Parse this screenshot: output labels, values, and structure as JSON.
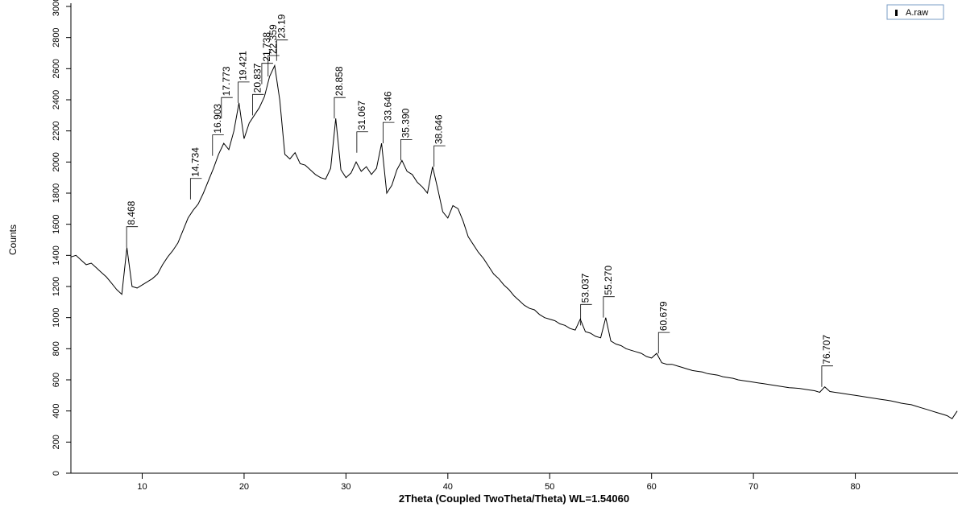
{
  "chart_data": {
    "type": "line",
    "xlabel": "2Theta (Coupled TwoTheta/Theta) WL=1.54060",
    "ylabel": "Counts",
    "legend": "top-right",
    "x": [
      3,
      3.5,
      4,
      4.5,
      5,
      5.5,
      6,
      6.5,
      7,
      7.5,
      8,
      8.5,
      9,
      9.5,
      10,
      10.5,
      11,
      11.5,
      12,
      12.5,
      13,
      13.5,
      14,
      14.5,
      15,
      15.5,
      16,
      16.5,
      17,
      17.5,
      18,
      18.5,
      19,
      19.5,
      20,
      20.5,
      21,
      21.5,
      22,
      22.5,
      23,
      23.5,
      24,
      24.5,
      25,
      25.5,
      26,
      26.5,
      27,
      27.5,
      28,
      28.5,
      29,
      29.5,
      30,
      30.5,
      31,
      31.5,
      32,
      32.5,
      33,
      33.5,
      34,
      34.5,
      35,
      35.5,
      36,
      36.5,
      37,
      37.5,
      38,
      38.5,
      39,
      39.5,
      40,
      40.5,
      41,
      41.5,
      42,
      42.5,
      43,
      43.5,
      44,
      44.5,
      45,
      45.5,
      46,
      46.5,
      47,
      47.5,
      48,
      48.5,
      49,
      49.5,
      50,
      50.5,
      51,
      51.5,
      52,
      52.5,
      53,
      53.5,
      54,
      54.5,
      55,
      55.5,
      56,
      56.5,
      57,
      57.5,
      58,
      58.5,
      59,
      59.5,
      60,
      60.5,
      61,
      61.5,
      62,
      62.5,
      63,
      63.5,
      64,
      64.5,
      65,
      65.5,
      66,
      66.5,
      67,
      67.5,
      68,
      68.5,
      69,
      69.5,
      70,
      70.5,
      71,
      71.5,
      72,
      72.5,
      73,
      73.5,
      74,
      74.5,
      75,
      75.5,
      76,
      76.5,
      77,
      77.5,
      78,
      78.5,
      79,
      79.5,
      80,
      80.5,
      81,
      81.5,
      82,
      82.5,
      83,
      83.5,
      84,
      84.5,
      85,
      85.5,
      86,
      86.5,
      87,
      87.5,
      88,
      88.5,
      89,
      89.5,
      90
    ],
    "series": [
      {
        "name": "A.raw",
        "color": "#000000",
        "values": [
          1390,
          1400,
          1370,
          1340,
          1350,
          1320,
          1290,
          1260,
          1220,
          1180,
          1150,
          1450,
          1200,
          1190,
          1210,
          1230,
          1250,
          1280,
          1340,
          1390,
          1430,
          1480,
          1560,
          1640,
          1690,
          1730,
          1800,
          1880,
          1960,
          2050,
          2120,
          2080,
          2200,
          2380,
          2150,
          2250,
          2300,
          2350,
          2420,
          2550,
          2620,
          2400,
          2050,
          2020,
          2060,
          1990,
          1980,
          1950,
          1920,
          1900,
          1890,
          1960,
          2280,
          1950,
          1900,
          1930,
          2000,
          1940,
          1970,
          1920,
          1960,
          2120,
          1800,
          1850,
          1950,
          2010,
          1940,
          1920,
          1870,
          1840,
          1800,
          1970,
          1830,
          1680,
          1640,
          1720,
          1700,
          1620,
          1520,
          1470,
          1420,
          1380,
          1330,
          1280,
          1250,
          1210,
          1180,
          1140,
          1110,
          1080,
          1060,
          1050,
          1020,
          1000,
          990,
          980,
          960,
          950,
          930,
          920,
          990,
          910,
          900,
          880,
          870,
          1000,
          850,
          830,
          820,
          800,
          790,
          780,
          770,
          750,
          740,
          770,
          710,
          700,
          700,
          690,
          680,
          670,
          660,
          655,
          650,
          640,
          635,
          630,
          620,
          615,
          610,
          600,
          595,
          590,
          585,
          580,
          575,
          570,
          565,
          560,
          555,
          550,
          548,
          545,
          540,
          535,
          530,
          520,
          555,
          525,
          520,
          515,
          510,
          505,
          500,
          495,
          490,
          485,
          480,
          475,
          470,
          465,
          458,
          450,
          445,
          440,
          430,
          420,
          410,
          400,
          390,
          380,
          370,
          350,
          400
        ]
      }
    ],
    "peaks": [
      {
        "value": 8.468,
        "label": "8.468",
        "counts": 1450
      },
      {
        "value": 14.734,
        "label": "14.734",
        "counts": 1760
      },
      {
        "value": 16.903,
        "label": "16.903",
        "counts": 2040
      },
      {
        "value": 17.773,
        "label": "17.773",
        "counts": 2280
      },
      {
        "value": 19.421,
        "label": "19.421",
        "counts": 2380
      },
      {
        "value": 20.837,
        "label": "20.837",
        "counts": 2300
      },
      {
        "value": 21.738,
        "label": "21.738",
        "counts": 2500
      },
      {
        "value": 22.359,
        "label": "22.359",
        "counts": 2550
      },
      {
        "value": 23.19,
        "label": "23.19",
        "counts": 2650
      },
      {
        "value": 28.858,
        "label": "28.858",
        "counts": 2280
      },
      {
        "value": 31.067,
        "label": "31.067",
        "counts": 2060
      },
      {
        "value": 33.646,
        "label": "33.646",
        "counts": 2120
      },
      {
        "value": 35.39,
        "label": "35.390",
        "counts": 2010
      },
      {
        "value": 38.646,
        "label": "38.646",
        "counts": 1970
      },
      {
        "value": 53.037,
        "label": "53.037",
        "counts": 950
      },
      {
        "value": 55.27,
        "label": "55.270",
        "counts": 1000
      },
      {
        "value": 60.679,
        "label": "60.679",
        "counts": 770
      },
      {
        "value": 76.707,
        "label": "76.707",
        "counts": 555
      }
    ],
    "xlim": [
      3,
      90
    ],
    "ylim": [
      0,
      3000
    ],
    "xticks": [
      10,
      20,
      30,
      40,
      50,
      60,
      70,
      80
    ],
    "yticks": [
      0,
      200,
      400,
      600,
      800,
      1000,
      1200,
      1400,
      1600,
      1800,
      2000,
      2200,
      2400,
      2600,
      2800,
      3000
    ]
  }
}
